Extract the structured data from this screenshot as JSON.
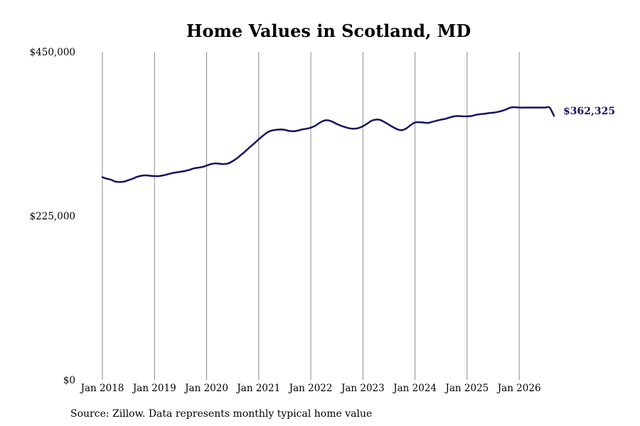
{
  "chart_data": {
    "type": "line",
    "title": "Home Values in Scotland, MD",
    "xlabel": "",
    "ylabel": "",
    "ylim": [
      0,
      450000
    ],
    "yticks": [
      0,
      225000,
      450000
    ],
    "ytick_labels": [
      "$0",
      "$225,000",
      "$450,000"
    ],
    "xlim": [
      "2018-01",
      "2026-09"
    ],
    "xtick_labels": [
      "Jan 2018",
      "Jan 2019",
      "Jan 2020",
      "Jan 2021",
      "Jan 2022",
      "Jan 2023",
      "Jan 2024",
      "Jan 2025",
      "Jan 2026"
    ],
    "grid": "vertical",
    "legend": "none",
    "line_color": "#14145f",
    "end_label": "$362,325",
    "series": [
      {
        "x": [
          "2018-01",
          "2018-02",
          "2018-03",
          "2018-04",
          "2018-05",
          "2018-06",
          "2018-07",
          "2018-08",
          "2018-09",
          "2018-10",
          "2018-11",
          "2018-12",
          "2019-01",
          "2019-02",
          "2019-03",
          "2019-04",
          "2019-05",
          "2019-06",
          "2019-07",
          "2019-08",
          "2019-09",
          "2019-10",
          "2019-11",
          "2019-12",
          "2020-01",
          "2020-02",
          "2020-03",
          "2020-04",
          "2020-05",
          "2020-06",
          "2020-07",
          "2020-08",
          "2020-09",
          "2020-10",
          "2020-11",
          "2020-12",
          "2021-01",
          "2021-02",
          "2021-03",
          "2021-04",
          "2021-05",
          "2021-06",
          "2021-07",
          "2021-08",
          "2021-09",
          "2021-10",
          "2021-11",
          "2021-12",
          "2022-01",
          "2022-02",
          "2022-03",
          "2022-04",
          "2022-05",
          "2022-06",
          "2022-07",
          "2022-08",
          "2022-09",
          "2022-10",
          "2022-11",
          "2022-12",
          "2023-01",
          "2023-02",
          "2023-03",
          "2023-04",
          "2023-05",
          "2023-06",
          "2023-07",
          "2023-08",
          "2023-09",
          "2023-10",
          "2023-11",
          "2023-12",
          "2024-01",
          "2024-02",
          "2024-03",
          "2024-04",
          "2024-05",
          "2024-06",
          "2024-07",
          "2024-08",
          "2024-09",
          "2024-10",
          "2024-11",
          "2024-12",
          "2025-01",
          "2025-02",
          "2025-03",
          "2025-04",
          "2025-05",
          "2025-06",
          "2025-07",
          "2025-08",
          "2025-09",
          "2025-10",
          "2025-11",
          "2025-12",
          "2026-01",
          "2026-02",
          "2026-03",
          "2026-04",
          "2026-05",
          "2026-06",
          "2026-07",
          "2026-08",
          "2026-09"
        ],
        "values": [
          278000,
          276000,
          274500,
          272000,
          271500,
          272000,
          274000,
          276000,
          278500,
          280000,
          280500,
          280000,
          279500,
          279500,
          280500,
          282000,
          283500,
          284500,
          285500,
          286500,
          288000,
          290000,
          291000,
          292000,
          294000,
          296000,
          297000,
          296500,
          296000,
          297000,
          300000,
          304000,
          309000,
          314000,
          319500,
          324500,
          330000,
          335000,
          339500,
          342000,
          343000,
          343500,
          343000,
          341500,
          341000,
          342000,
          343500,
          344500,
          346000,
          348500,
          352500,
          355500,
          356000,
          354000,
          351000,
          348500,
          346500,
          345000,
          344500,
          345500,
          348000,
          351500,
          355500,
          357000,
          356500,
          353500,
          350000,
          346500,
          343500,
          342500,
          345000,
          349500,
          353000,
          353500,
          353000,
          352500,
          354000,
          355500,
          357000,
          358000,
          360000,
          361500,
          362000,
          361500,
          361500,
          362000,
          363500,
          364500,
          365000,
          366000,
          366500,
          367500,
          369000,
          371000,
          373500,
          374000,
          373500,
          373500,
          373500,
          373500,
          373500,
          373500,
          373500,
          373500,
          362325
        ]
      }
    ]
  },
  "source": "Source: Zillow. Data represents monthly typical home value"
}
